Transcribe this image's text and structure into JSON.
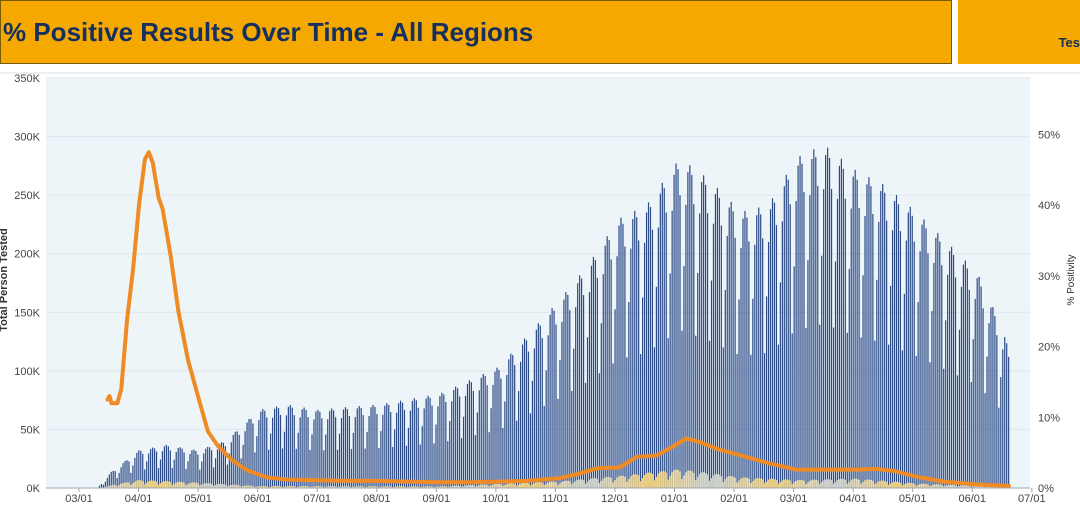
{
  "header": {
    "title": "% Positive Results Over Time - All Regions",
    "side_tab_text": "Tes"
  },
  "colors": {
    "header_bg": "#f5a800",
    "title_text": "#15305e",
    "tests_bar": "#2b4a86",
    "positive_bar": "#e8cc84",
    "positivity_line": "#f08a24",
    "plot_bg": "#eef5f9"
  },
  "chart_data": {
    "type": "bar",
    "title": "% Positive Results Over Time - All Regions",
    "ylabel": "Total Person Tested",
    "y2label": "% Positivity",
    "ylim": [
      0,
      350000
    ],
    "y2lim": [
      0,
      58
    ],
    "y_ticks": [
      0,
      50000,
      100000,
      150000,
      200000,
      250000,
      300000,
      350000
    ],
    "y_tick_labels": [
      "0K",
      "50K",
      "100K",
      "150K",
      "200K",
      "250K",
      "300K",
      "350K"
    ],
    "y2_ticks": [
      0,
      10,
      20,
      30,
      40,
      50
    ],
    "y2_tick_labels": [
      "0%",
      "10%",
      "20%",
      "30%",
      "40%",
      "50%"
    ],
    "x_tick_labels": [
      "03/01",
      "04/01",
      "05/01",
      "06/01",
      "07/01",
      "08/01",
      "09/01",
      "10/01",
      "11/01",
      "12/01",
      "01/01",
      "02/01",
      "03/01",
      "04/01",
      "05/01",
      "06/01",
      "07/01"
    ],
    "grid": true,
    "series": [
      {
        "name": "Total Person Tested",
        "kind": "bar",
        "trend_points": [
          [
            "03/11",
            0
          ],
          [
            "03/18",
            12000
          ],
          [
            "04/01",
            28000
          ],
          [
            "04/15",
            32000
          ],
          [
            "05/01",
            28000
          ],
          [
            "05/15",
            35000
          ],
          [
            "06/01",
            58000
          ],
          [
            "06/15",
            62000
          ],
          [
            "07/01",
            58000
          ],
          [
            "07/15",
            60000
          ],
          [
            "08/01",
            62000
          ],
          [
            "09/01",
            70000
          ],
          [
            "10/01",
            90000
          ],
          [
            "11/01",
            140000
          ],
          [
            "11/15",
            165000
          ],
          [
            "12/01",
            200000
          ],
          [
            "12/15",
            210000
          ],
          [
            "01/01",
            245000
          ],
          [
            "01/15",
            230000
          ],
          [
            "02/01",
            205000
          ],
          [
            "02/15",
            210000
          ],
          [
            "03/01",
            245000
          ],
          [
            "03/15",
            255000
          ],
          [
            "04/01",
            235000
          ],
          [
            "04/15",
            225000
          ],
          [
            "05/01",
            205000
          ],
          [
            "05/15",
            185000
          ],
          [
            "06/01",
            160000
          ],
          [
            "06/15",
            115000
          ],
          [
            "06/17",
            100000
          ]
        ]
      },
      {
        "name": "Positive Results",
        "kind": "bar",
        "trend_points": [
          [
            "03/11",
            0
          ],
          [
            "04/01",
            6000
          ],
          [
            "05/01",
            4000
          ],
          [
            "06/01",
            1500
          ],
          [
            "09/01",
            1200
          ],
          [
            "11/01",
            5000
          ],
          [
            "12/01",
            9000
          ],
          [
            "01/01",
            14000
          ],
          [
            "02/01",
            8000
          ],
          [
            "03/01",
            6000
          ],
          [
            "04/01",
            7000
          ],
          [
            "05/01",
            3500
          ],
          [
            "06/01",
            1500
          ],
          [
            "06/17",
            600
          ]
        ]
      },
      {
        "name": "% Positivity",
        "kind": "line",
        "axis": "right",
        "points": [
          [
            "03/16",
            12.5
          ],
          [
            "03/17",
            13
          ],
          [
            "03/18",
            12
          ],
          [
            "03/21",
            12
          ],
          [
            "03/23",
            14
          ],
          [
            "03/26",
            24
          ],
          [
            "03/29",
            31
          ],
          [
            "04/01",
            40
          ],
          [
            "04/04",
            46.5
          ],
          [
            "04/06",
            47.5
          ],
          [
            "04/08",
            46
          ],
          [
            "04/11",
            41
          ],
          [
            "04/13",
            39.5
          ],
          [
            "04/17",
            33
          ],
          [
            "04/21",
            25
          ],
          [
            "04/26",
            18
          ],
          [
            "05/01",
            13
          ],
          [
            "05/06",
            8
          ],
          [
            "05/11",
            6
          ],
          [
            "05/18",
            4
          ],
          [
            "05/26",
            2.5
          ],
          [
            "06/05",
            1.5
          ],
          [
            "06/15",
            1.2
          ],
          [
            "07/01",
            1.1
          ],
          [
            "07/15",
            1.0
          ],
          [
            "08/01",
            1.0
          ],
          [
            "08/15",
            0.9
          ],
          [
            "09/01",
            0.8
          ],
          [
            "09/15",
            0.8
          ],
          [
            "10/01",
            0.9
          ],
          [
            "10/15",
            1.0
          ],
          [
            "11/01",
            1.4
          ],
          [
            "11/10",
            2.0
          ],
          [
            "11/20",
            2.8
          ],
          [
            "12/01",
            2.9
          ],
          [
            "12/10",
            4.4
          ],
          [
            "12/20",
            4.6
          ],
          [
            "12/28",
            5.8
          ],
          [
            "01/04",
            7.0
          ],
          [
            "01/11",
            6.5
          ],
          [
            "01/20",
            5.5
          ],
          [
            "02/01",
            4.6
          ],
          [
            "02/15",
            3.5
          ],
          [
            "03/01",
            2.6
          ],
          [
            "03/15",
            2.6
          ],
          [
            "04/01",
            2.6
          ],
          [
            "04/10",
            2.7
          ],
          [
            "04/20",
            2.4
          ],
          [
            "05/01",
            1.6
          ],
          [
            "05/15",
            0.9
          ],
          [
            "06/01",
            0.5
          ],
          [
            "06/17",
            0.3
          ]
        ]
      }
    ]
  }
}
